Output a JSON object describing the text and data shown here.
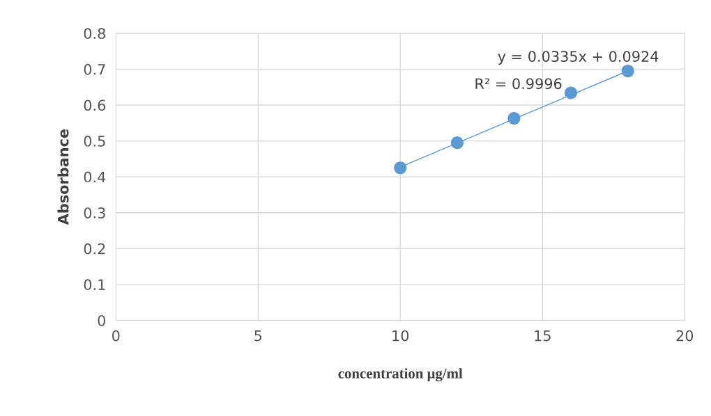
{
  "chart_data": {
    "type": "scatter",
    "xlabel": "concentration μg/ml",
    "ylabel": "Absorbance",
    "series": [
      {
        "color": "#5b9bd5",
        "marker": "circle",
        "x": [
          10,
          12,
          14,
          16,
          18
        ],
        "values": [
          0.425,
          0.495,
          0.563,
          0.634,
          0.695
        ]
      },
      {
        "type": "line",
        "color": "#5b9bd5",
        "line_style": "solid",
        "x": [
          10,
          18
        ],
        "values": [
          0.427,
          0.695
        ]
      }
    ],
    "annotations": [
      "y = 0.0335x + 0.0924",
      "R² = 0.9996"
    ],
    "xlim": [
      0,
      20
    ],
    "xticks": [
      0,
      5,
      10,
      15,
      20
    ],
    "ylim": [
      0,
      0.8
    ],
    "yticks": [
      0,
      0.1,
      0.2,
      0.3,
      0.4,
      0.5,
      0.6,
      0.7,
      0.8
    ],
    "grid": true,
    "legend": false
  }
}
